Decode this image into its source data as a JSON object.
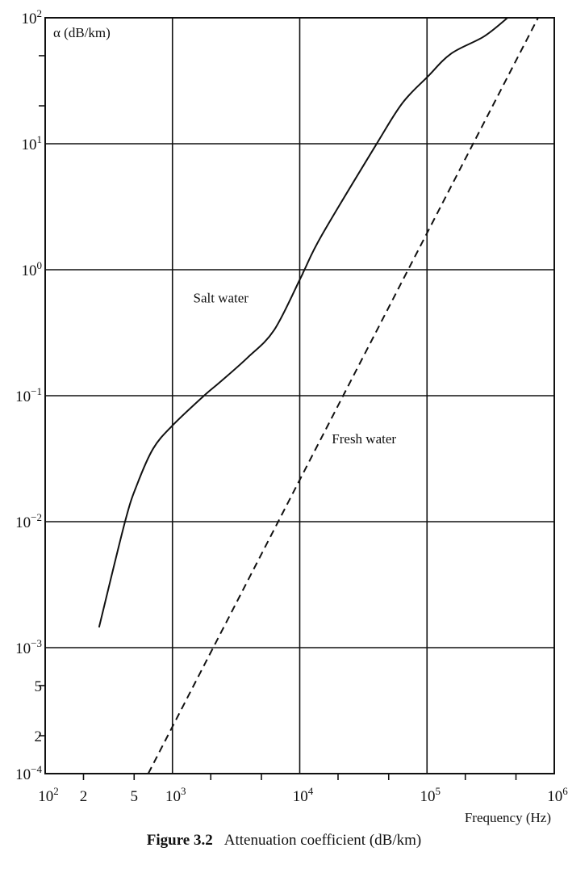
{
  "chart_data": {
    "type": "line",
    "xscale": "log",
    "yscale": "log",
    "xlim": [
      100,
      1000000
    ],
    "ylim": [
      0.0001,
      100
    ],
    "grid": true,
    "xlabel": "Frequency (Hz)",
    "ylabel": "α (dB/km)",
    "x_ticks": [
      {
        "value": 100,
        "base": "10",
        "exp": "2"
      },
      {
        "value": 200,
        "base": "2",
        "exp": ""
      },
      {
        "value": 500,
        "base": "5",
        "exp": ""
      },
      {
        "value": 1000,
        "base": "10",
        "exp": "3"
      },
      {
        "value": 10000,
        "base": "10",
        "exp": "4"
      },
      {
        "value": 100000,
        "base": "10",
        "exp": "5"
      },
      {
        "value": 1000000,
        "base": "10",
        "exp": "6"
      }
    ],
    "y_ticks": [
      {
        "value": 100,
        "base": "10",
        "exp": "2"
      },
      {
        "value": 10,
        "base": "10",
        "exp": "1"
      },
      {
        "value": 1,
        "base": "10",
        "exp": "0"
      },
      {
        "value": 0.1,
        "base": "10",
        "exp": "−1"
      },
      {
        "value": 0.01,
        "base": "10",
        "exp": "−2"
      },
      {
        "value": 0.001,
        "base": "10",
        "exp": "−3"
      },
      {
        "value": 0.0005,
        "base": "5",
        "exp": ""
      },
      {
        "value": 0.0002,
        "base": "2",
        "exp": ""
      },
      {
        "value": 0.0001,
        "base": "10",
        "exp": "−4"
      }
    ],
    "series": [
      {
        "name": "Salt water",
        "style": "solid",
        "label_at": [
          2400,
          0.55
        ],
        "x": [
          265,
          424,
          527,
          705,
          1000,
          1770,
          2360,
          3880,
          6270,
          10100,
          10900,
          15000,
          40000,
          64000,
          101000,
          155000,
          280000,
          430000
        ],
        "y": [
          0.00145,
          0.01,
          0.0197,
          0.038,
          0.058,
          0.1,
          0.128,
          0.2,
          0.33,
          0.85,
          1.0,
          1.9,
          9.9,
          21,
          34,
          52,
          71,
          100
        ]
      },
      {
        "name": "Fresh water",
        "style": "dashed",
        "label_at": [
          32000,
          0.042
        ],
        "x": [
          645,
          1000,
          746000
        ],
        "y": [
          0.0001,
          0.00023,
          100
        ]
      }
    ]
  },
  "caption": {
    "figure": "Figure 3.2",
    "text": "Attenuation coefficient (dB/km)"
  }
}
